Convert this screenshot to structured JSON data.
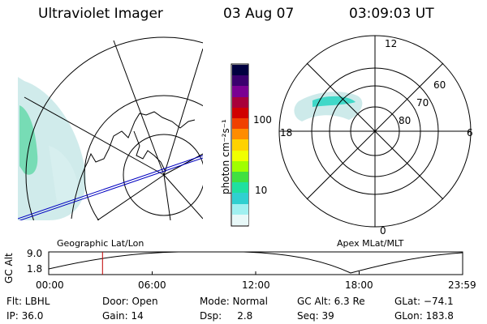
{
  "header": {
    "title": "Ultraviolet Imager",
    "date": "03 Aug 07",
    "time": "03:09:03 UT"
  },
  "colorbar": {
    "label": "photon cm⁻²s⁻¹",
    "ticks": [
      "100",
      "10"
    ],
    "colors": [
      "#000040",
      "#3a006e",
      "#7a0092",
      "#a8003a",
      "#d00000",
      "#f04000",
      "#ff8c00",
      "#ffd200",
      "#f0ff00",
      "#a0ff00",
      "#40e040",
      "#20e0a0",
      "#30d0d0",
      "#a0f0f0",
      "#e8f8f8"
    ]
  },
  "geo_map": {
    "label": "Geographic Lat/Lon"
  },
  "polar_map": {
    "label": "Apex MLat/MLT",
    "mlt_labels": {
      "top": "12",
      "left": "18",
      "right": "6",
      "bottom": "0"
    },
    "lat_labels": [
      "60",
      "70",
      "80"
    ]
  },
  "altitude_plot": {
    "ylabel": "GC Alt",
    "yticks": [
      "9.0",
      "1.8"
    ],
    "xticks": [
      "00:00",
      "06:00",
      "12:00",
      "18:00",
      "23:59"
    ],
    "current_time_fraction": 0.13
  },
  "status": {
    "filter": "Flt: LBHL",
    "ip": "IP: 36.0",
    "door": "Door: Open",
    "gain": "Gain: 14",
    "mode": "Mode: Normal",
    "dsp": "Dsp:     2.8",
    "gc_alt": "GC Alt: 6.3 Re",
    "seq": "Seq: 39",
    "glat": "GLat: −74.1",
    "glon": "GLon: 183.8"
  }
}
